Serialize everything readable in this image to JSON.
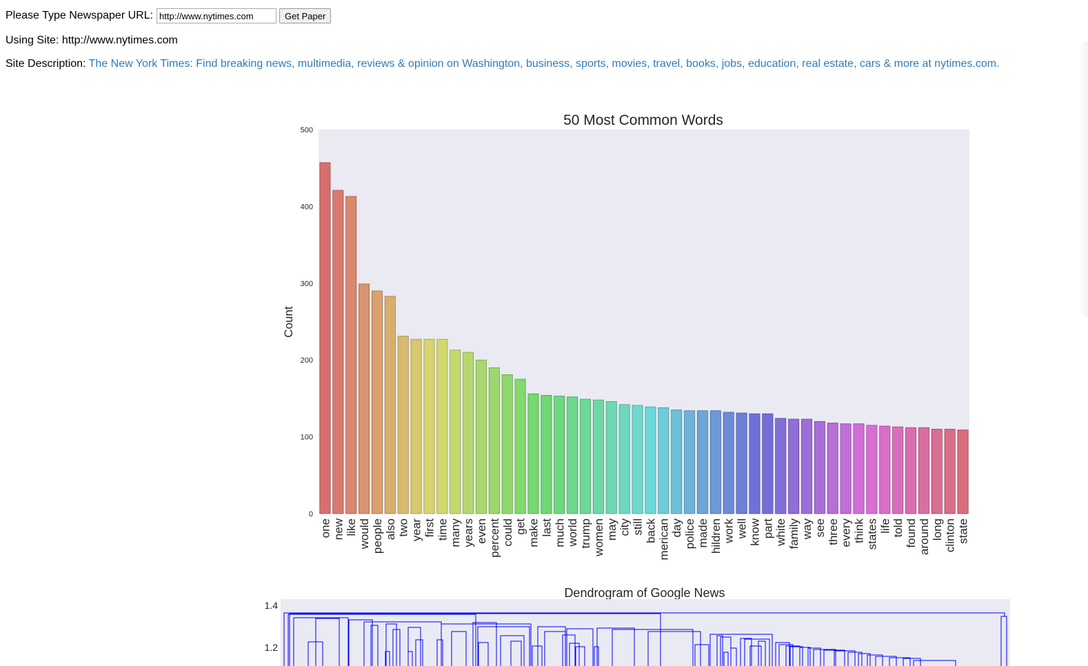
{
  "form": {
    "label": "Please Type Newspaper URL:",
    "url_value": "http://www.nytimes.com",
    "button_label": "Get Paper"
  },
  "site": {
    "label": "Using Site:",
    "value": "http://www.nytimes.com"
  },
  "description": {
    "label": "Site Description:",
    "value": "The New York Times: Find breaking news, multimedia, reviews & opinion on Washington, business, sports, movies, travel, books, jobs, education, real estate, cars & more at nytimes.com."
  },
  "chart_data": [
    {
      "type": "bar",
      "title": "50 Most Common Words",
      "xlabel": "",
      "ylabel": "Count",
      "ylim": [
        0,
        500
      ],
      "yticks": [
        0,
        100,
        200,
        300,
        400,
        500
      ],
      "grid": false,
      "categories": [
        "one",
        "new",
        "like",
        "would",
        "people",
        "also",
        "two",
        "year",
        "first",
        "time",
        "many",
        "years",
        "even",
        "percent",
        "could",
        "get",
        "make",
        "last",
        "much",
        "world",
        "trump",
        "women",
        "may",
        "city",
        "still",
        "back",
        "american",
        "day",
        "police",
        "made",
        "children",
        "work",
        "well",
        "know",
        "part",
        "white",
        "family",
        "way",
        "see",
        "three",
        "every",
        "think",
        "states",
        "life",
        "told",
        "found",
        "around",
        "long",
        "clinton",
        "state"
      ],
      "tick_labels": [
        "one",
        "new",
        "like",
        "would",
        "people",
        "also",
        "two",
        "year",
        "first",
        "time",
        "many",
        "years",
        "even",
        "percent",
        "could",
        "get",
        "make",
        "last",
        "much",
        "world",
        "trump",
        "women",
        "may",
        "city",
        "still",
        "back",
        "merican",
        "day",
        "police",
        "made",
        "hildren",
        "work",
        "well",
        "know",
        "part",
        "white",
        "family",
        "way",
        "see",
        "three",
        "every",
        "think",
        "states",
        "life",
        "told",
        "found",
        "around",
        "long",
        "clinton",
        "state"
      ],
      "values": [
        457,
        421,
        413,
        299,
        290,
        283,
        231,
        227,
        227,
        227,
        213,
        210,
        200,
        190,
        181,
        175,
        156,
        154,
        153,
        152,
        149,
        148,
        146,
        142,
        141,
        139,
        138,
        135,
        134,
        134,
        134,
        132,
        131,
        130,
        130,
        124,
        123,
        123,
        120,
        118,
        117,
        117,
        115,
        114,
        113,
        112,
        112,
        110,
        110,
        109
      ]
    },
    {
      "type": "dendrogram",
      "title": "Dendrogram of Google News",
      "ylim_visible": [
        1.1,
        1.45
      ],
      "yticks": [
        1.2,
        1.4
      ],
      "color": "#0000ff"
    }
  ]
}
